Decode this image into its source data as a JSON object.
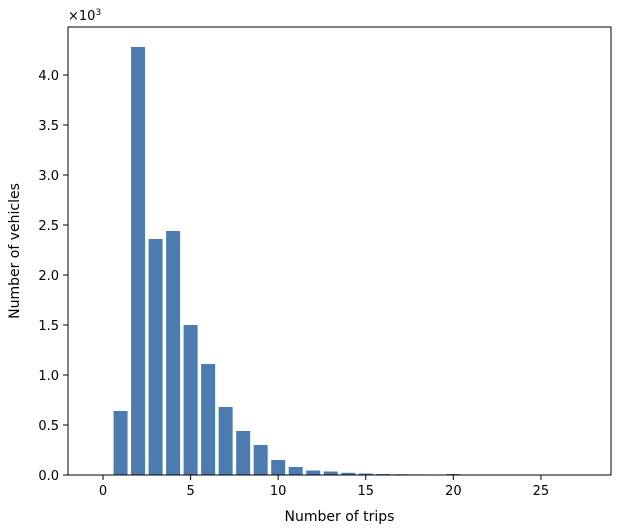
{
  "chart_data": {
    "type": "bar",
    "title": "",
    "xlabel": "Number of trips",
    "ylabel": "Number of vehicles",
    "y_scale_label": "×10",
    "y_scale_exponent": "3",
    "x": [
      1,
      2,
      3,
      4,
      5,
      6,
      7,
      8,
      9,
      10,
      11,
      12,
      13,
      14,
      15,
      16,
      17,
      18,
      19,
      20
    ],
    "values": [
      640,
      4280,
      2360,
      2440,
      1500,
      1110,
      680,
      440,
      300,
      150,
      80,
      45,
      35,
      22,
      15,
      10,
      8,
      6,
      4,
      10
    ],
    "xlim": [
      -2,
      29
    ],
    "ylim": [
      0,
      4480
    ],
    "x_ticks": [
      0,
      5,
      10,
      15,
      20,
      25
    ],
    "x_tick_labels": [
      "0",
      "5",
      "10",
      "15",
      "20",
      "25"
    ],
    "y_ticks": [
      0,
      500,
      1000,
      1500,
      2000,
      2500,
      3000,
      3500,
      4000
    ],
    "y_tick_labels": [
      "0.0",
      "0.5",
      "1.0",
      "1.5",
      "2.0",
      "2.5",
      "3.0",
      "3.5",
      "4.0"
    ],
    "bar_color": "#4c7bb0",
    "grid": false,
    "legend": "none"
  }
}
